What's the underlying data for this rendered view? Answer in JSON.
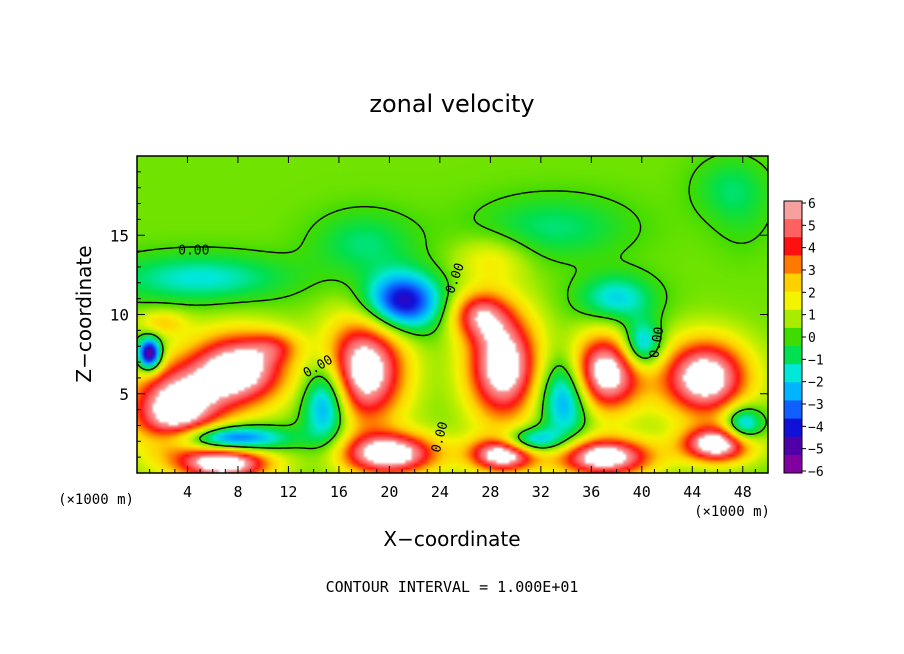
{
  "chart_data": {
    "type": "heatmap",
    "title": "zonal velocity",
    "xlabel": "X−coordinate",
    "ylabel": "Z−coordinate",
    "x_unit_left": "(×1000 m)",
    "x_unit_right": "(×1000 m)",
    "footer": "CONTOUR INTERVAL = 1.000E+01",
    "xlim": [
      0,
      50
    ],
    "ylim": [
      0,
      20
    ],
    "x_ticks": [
      4,
      8,
      12,
      16,
      20,
      24,
      28,
      32,
      36,
      40,
      44,
      48
    ],
    "y_ticks": [
      5,
      10,
      15
    ],
    "contour_label": "0.00",
    "colorbar": {
      "range": [
        -6,
        6
      ],
      "ticks": [
        6,
        5,
        4,
        3,
        2,
        1,
        0,
        -1,
        -2,
        -3,
        -4,
        -5,
        -6
      ],
      "colors": [
        "#f7a0a0",
        "#ff6060",
        "#ff1010",
        "#ff7800",
        "#ffd000",
        "#f4f400",
        "#a8ec00",
        "#40dc00",
        "#00e050",
        "#00e8d8",
        "#00b4ff",
        "#1060ff",
        "#1010d8",
        "#5000a8",
        "#8000a0"
      ]
    },
    "cells": [
      {
        "x": 3,
        "z": 4,
        "rx": 3.5,
        "rz": 2.6,
        "v": 7
      },
      {
        "x": 8,
        "z": 6.5,
        "rx": 3.8,
        "rz": 2.3,
        "v": 7
      },
      {
        "x": 18,
        "z": 6.5,
        "rx": 3.2,
        "rz": 3.3,
        "v": 7
      },
      {
        "x": 29,
        "z": 6.8,
        "rx": 2.8,
        "rz": 3.4,
        "v": 7
      },
      {
        "x": 37,
        "z": 6.3,
        "rx": 3.0,
        "rz": 2.4,
        "v": 7
      },
      {
        "x": 45,
        "z": 6.0,
        "rx": 3.4,
        "rz": 2.4,
        "v": 7
      },
      {
        "x": 20,
        "z": 1.2,
        "rx": 3.8,
        "rz": 1.3,
        "v": 7
      },
      {
        "x": 37,
        "z": 1.0,
        "rx": 3.8,
        "rz": 1.2,
        "v": 7
      },
      {
        "x": 7,
        "z": 0.6,
        "rx": 3.5,
        "rz": 1.0,
        "v": 7
      },
      {
        "x": 29,
        "z": 1.2,
        "rx": 2.6,
        "rz": 1.1,
        "v": 7
      },
      {
        "x": 46,
        "z": 1.8,
        "rx": 2.8,
        "rz": 1.1,
        "v": 7
      },
      {
        "x": 1,
        "z": 7.5,
        "rx": 0.9,
        "rz": 1.0,
        "v": -7
      },
      {
        "x": 21,
        "z": 10.8,
        "rx": 3.0,
        "rz": 1.8,
        "v": -5.5
      },
      {
        "x": 7,
        "z": 2.2,
        "rx": 4.5,
        "rz": 0.8,
        "v": -5
      },
      {
        "x": 15,
        "z": 4.5,
        "rx": 1.8,
        "rz": 2.6,
        "v": -4.5
      },
      {
        "x": 34,
        "z": 5.0,
        "rx": 2.0,
        "rz": 2.6,
        "v": -4.5
      },
      {
        "x": 31,
        "z": 2.0,
        "rx": 2.5,
        "rz": 0.8,
        "v": -4.5
      },
      {
        "x": 40,
        "z": 8.0,
        "rx": 1.6,
        "rz": 1.5,
        "v": -4
      },
      {
        "x": 48,
        "z": 3.0,
        "rx": 1.5,
        "rz": 1.2,
        "v": -4
      },
      {
        "x": 5,
        "z": 12.3,
        "rx": 7.0,
        "rz": 1.5,
        "v": -2.2
      },
      {
        "x": 38,
        "z": 11.0,
        "rx": 3.0,
        "rz": 1.5,
        "v": -2.5
      },
      {
        "x": 33,
        "z": 15.5,
        "rx": 6.0,
        "rz": 2.0,
        "v": -1.5
      },
      {
        "x": 18,
        "z": 14.5,
        "rx": 4.0,
        "rz": 2.0,
        "v": -1.5
      },
      {
        "x": 47,
        "z": 18.0,
        "rx": 3.0,
        "rz": 2.0,
        "v": -1.2
      },
      {
        "x": 28,
        "z": 13.5,
        "rx": 3.0,
        "rz": 1.5,
        "v": 1.5
      },
      {
        "x": 27,
        "z": 10.0,
        "rx": 2.2,
        "rz": 1.5,
        "v": 4
      },
      {
        "x": 11,
        "z": 8.0,
        "rx": 2.0,
        "rz": 1.0,
        "v": 2
      },
      {
        "x": 2,
        "z": 9.5,
        "rx": 2.0,
        "rz": 0.8,
        "v": 2
      },
      {
        "x": 48,
        "z": 16,
        "rx": 2.5,
        "rz": 2.5,
        "v": -0.5
      }
    ]
  }
}
